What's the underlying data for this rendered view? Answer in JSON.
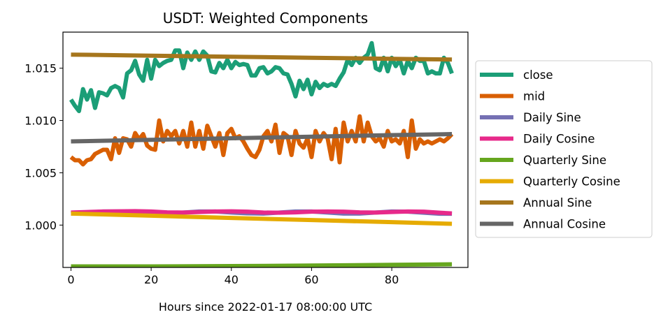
{
  "chart_data": {
    "type": "line",
    "title": "USDT: Weighted Components",
    "xlabel": "Hours since 2022-01-17 08:00:00 UTC",
    "ylabel": "",
    "xlim": [
      -2,
      99
    ],
    "ylim": [
      0.99595,
      1.01845
    ],
    "xticks": [
      0,
      20,
      40,
      60,
      80
    ],
    "yticks": [
      1.0,
      1.005,
      1.01,
      1.015
    ],
    "ytick_labels": [
      "1.000",
      "1.005",
      "1.010",
      "1.015"
    ],
    "grid": false,
    "legend_position": "right",
    "series": [
      {
        "name": "close",
        "color": "#1b9e77",
        "x": [
          0,
          1,
          2,
          3,
          4,
          5,
          6,
          7,
          8,
          9,
          10,
          11,
          12,
          13,
          14,
          15,
          16,
          17,
          18,
          19,
          20,
          21,
          22,
          23,
          24,
          25,
          26,
          27,
          28,
          29,
          30,
          31,
          32,
          33,
          34,
          35,
          36,
          37,
          38,
          39,
          40,
          41,
          42,
          43,
          44,
          45,
          46,
          47,
          48,
          49,
          50,
          51,
          52,
          53,
          54,
          55,
          56,
          57,
          58,
          59,
          60,
          61,
          62,
          63,
          64,
          65,
          66,
          67,
          68,
          69,
          70,
          71,
          72,
          73,
          74,
          75,
          76,
          77,
          78,
          79,
          80,
          81,
          82,
          83,
          84,
          85,
          86,
          87,
          88,
          89,
          90,
          91,
          92,
          93,
          94,
          95
        ],
        "y": [
          1.012,
          1.0114,
          1.0109,
          1.013,
          1.012,
          1.0129,
          1.0112,
          1.0127,
          1.0126,
          1.0124,
          1.0131,
          1.0133,
          1.0131,
          1.0122,
          1.0145,
          1.0148,
          1.0157,
          1.0144,
          1.0138,
          1.0158,
          1.014,
          1.0158,
          1.0152,
          1.0155,
          1.0157,
          1.0158,
          1.0167,
          1.0167,
          1.015,
          1.0165,
          1.0158,
          1.0166,
          1.0158,
          1.0166,
          1.0162,
          1.0147,
          1.0146,
          1.0155,
          1.015,
          1.0158,
          1.015,
          1.0156,
          1.0153,
          1.0154,
          1.0153,
          1.0143,
          1.0143,
          1.015,
          1.0151,
          1.0145,
          1.0147,
          1.0151,
          1.015,
          1.0145,
          1.0144,
          1.0135,
          1.0123,
          1.0138,
          1.013,
          1.0139,
          1.0125,
          1.0137,
          1.0131,
          1.0135,
          1.0133,
          1.0135,
          1.0133,
          1.014,
          1.0146,
          1.0158,
          1.0153,
          1.016,
          1.0155,
          1.016,
          1.0163,
          1.0174,
          1.015,
          1.0148,
          1.016,
          1.0147,
          1.016,
          1.0152,
          1.0158,
          1.0145,
          1.0157,
          1.015,
          1.016,
          1.0157,
          1.0157,
          1.0145,
          1.0147,
          1.0145,
          1.0145,
          1.016,
          1.0155,
          1.0145
        ]
      },
      {
        "name": "mid",
        "color": "#d95f02",
        "x": [
          0,
          1,
          2,
          3,
          4,
          5,
          6,
          7,
          8,
          9,
          10,
          11,
          12,
          13,
          14,
          15,
          16,
          17,
          18,
          19,
          20,
          21,
          22,
          23,
          24,
          25,
          26,
          27,
          28,
          29,
          30,
          31,
          32,
          33,
          34,
          35,
          36,
          37,
          38,
          39,
          40,
          41,
          42,
          43,
          44,
          45,
          46,
          47,
          48,
          49,
          50,
          51,
          52,
          53,
          54,
          55,
          56,
          57,
          58,
          59,
          60,
          61,
          62,
          63,
          64,
          65,
          66,
          67,
          68,
          69,
          70,
          71,
          72,
          73,
          74,
          75,
          76,
          77,
          78,
          79,
          80,
          81,
          82,
          83,
          84,
          85,
          86,
          87,
          88,
          89,
          90,
          91,
          92,
          93,
          94,
          95
        ],
        "y": [
          1.0065,
          1.0062,
          1.0062,
          1.0058,
          1.0062,
          1.0063,
          1.0068,
          1.007,
          1.0072,
          1.0072,
          1.0063,
          1.0083,
          1.0069,
          1.0083,
          1.0082,
          1.0075,
          1.0088,
          1.0082,
          1.0087,
          1.0076,
          1.0073,
          1.0072,
          1.01,
          1.008,
          1.009,
          1.0085,
          1.009,
          1.0078,
          1.009,
          1.0075,
          1.0098,
          1.0075,
          1.009,
          1.0073,
          1.0095,
          1.0085,
          1.0075,
          1.0088,
          1.0067,
          1.0088,
          1.0092,
          1.0083,
          1.0085,
          1.008,
          1.0073,
          1.0067,
          1.0065,
          1.0072,
          1.0085,
          1.009,
          1.008,
          1.0096,
          1.0069,
          1.0088,
          1.0085,
          1.0067,
          1.009,
          1.0078,
          1.0074,
          1.0083,
          1.0065,
          1.009,
          1.008,
          1.0088,
          1.0083,
          1.0063,
          1.0092,
          1.006,
          1.0098,
          1.008,
          1.009,
          1.008,
          1.0104,
          1.008,
          1.0098,
          1.0085,
          1.008,
          1.0083,
          1.0075,
          1.009,
          1.008,
          1.0082,
          1.0078,
          1.009,
          1.0065,
          1.01,
          1.0073,
          1.0082,
          1.0078,
          1.008,
          1.0078,
          1.008,
          1.0082,
          1.008,
          1.0083,
          1.0087
        ]
      },
      {
        "name": "Daily Sine",
        "color": "#7570b3",
        "x": [
          0,
          4,
          8,
          12,
          16,
          20,
          24,
          28,
          32,
          36,
          40,
          44,
          48,
          52,
          56,
          60,
          64,
          68,
          72,
          76,
          80,
          84,
          88,
          92,
          95
        ],
        "y": [
          1.0011,
          1.0012,
          1.0013,
          1.0013,
          1.00125,
          1.00115,
          1.0011,
          1.0012,
          1.0013,
          1.0013,
          1.0012,
          1.00112,
          1.0011,
          1.0012,
          1.0013,
          1.0013,
          1.0012,
          1.0011,
          1.0011,
          1.0012,
          1.0013,
          1.00128,
          1.00118,
          1.00108,
          1.00108
        ]
      },
      {
        "name": "Daily Cosine",
        "color": "#e7298a",
        "x": [
          0,
          4,
          8,
          12,
          16,
          20,
          24,
          28,
          32,
          36,
          40,
          44,
          48,
          52,
          56,
          60,
          64,
          68,
          72,
          76,
          80,
          84,
          88,
          92,
          95
        ],
        "y": [
          1.0012,
          1.00125,
          1.0013,
          1.00132,
          1.00133,
          1.0013,
          1.00122,
          1.0012,
          1.00125,
          1.0013,
          1.00132,
          1.00128,
          1.0012,
          1.00118,
          1.00122,
          1.00128,
          1.0013,
          1.00128,
          1.00122,
          1.0012,
          1.00125,
          1.0013,
          1.00128,
          1.00118,
          1.00112
        ]
      },
      {
        "name": "Quarterly Sine",
        "color": "#66a61e",
        "x": [
          0,
          20,
          40,
          60,
          80,
          95
        ],
        "y": [
          0.99605,
          0.99605,
          0.99608,
          0.99613,
          0.9962,
          0.99625
        ]
      },
      {
        "name": "Quarterly Cosine",
        "color": "#e6ab02",
        "x": [
          0,
          20,
          40,
          60,
          80,
          95
        ],
        "y": [
          1.0011,
          1.0009,
          1.00068,
          1.00048,
          1.00028,
          1.00012
        ]
      },
      {
        "name": "Annual Sine",
        "color": "#a6761d",
        "x": [
          0,
          20,
          40,
          60,
          80,
          95
        ],
        "y": [
          1.0163,
          1.0162,
          1.0161,
          1.016,
          1.0159,
          1.01583
        ]
      },
      {
        "name": "Annual Cosine",
        "color": "#666666",
        "x": [
          0,
          20,
          40,
          60,
          80,
          95
        ],
        "y": [
          1.008,
          1.00815,
          1.0083,
          1.00845,
          1.0086,
          1.0087
        ]
      }
    ]
  }
}
